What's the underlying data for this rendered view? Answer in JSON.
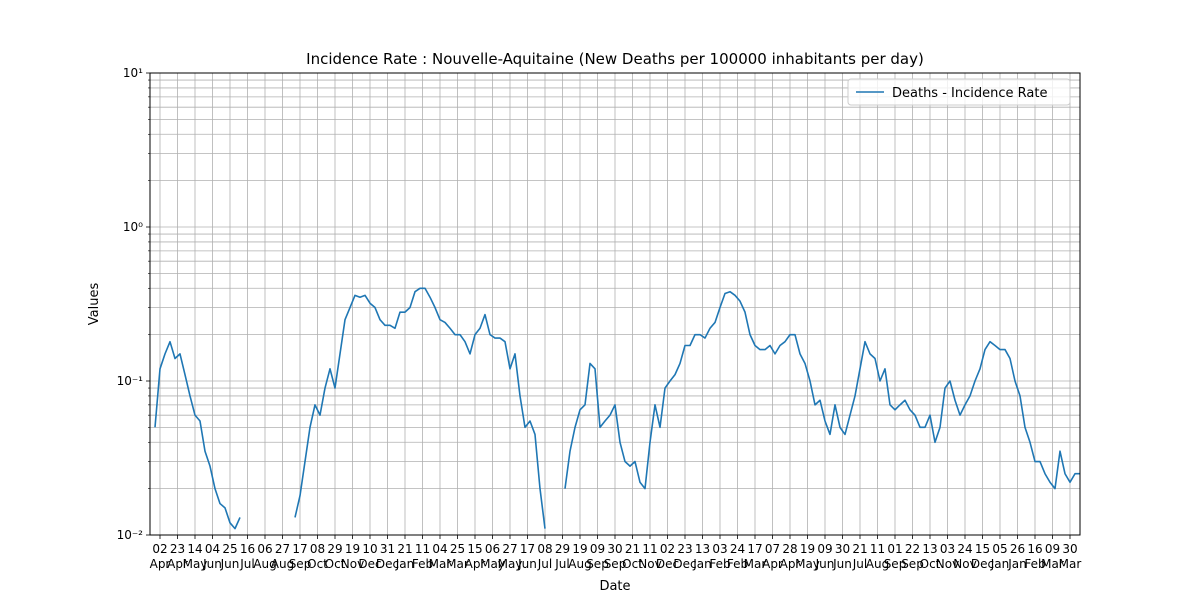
{
  "chart_data": {
    "type": "line",
    "title": "Incidence Rate : Nouvelle-Aquitaine  (New Deaths per 100000 inhabitants per day)",
    "xlabel": "Date",
    "ylabel": "Values",
    "log_y": true,
    "grid": true,
    "legend_loc": "upper right",
    "xlim": [
      -12,
      1104
    ],
    "ylim": [
      0.01,
      10
    ],
    "yticks": [
      {
        "value": 0.01,
        "label": "10⁻²"
      },
      {
        "value": 0.1,
        "label": "10⁻¹"
      },
      {
        "value": 1,
        "label": "10⁰"
      },
      {
        "value": 10,
        "label": "10¹"
      }
    ],
    "yminorticks": [
      0.02,
      0.03,
      0.04,
      0.05,
      0.06,
      0.07,
      0.08,
      0.09,
      0.2,
      0.3,
      0.4,
      0.5,
      0.6,
      0.7,
      0.8,
      0.9,
      2,
      3,
      4,
      5,
      6,
      7,
      8,
      9
    ],
    "xticks": [
      {
        "value": 0,
        "label": "02\nApr"
      },
      {
        "value": 21,
        "label": "23\nApr"
      },
      {
        "value": 42,
        "label": "14\nMay"
      },
      {
        "value": 63,
        "label": "04\nJun"
      },
      {
        "value": 84,
        "label": "25\nJun"
      },
      {
        "value": 105,
        "label": "16\nJul"
      },
      {
        "value": 126,
        "label": "06\nAug"
      },
      {
        "value": 147,
        "label": "27\nAug"
      },
      {
        "value": 168,
        "label": "17\nSep"
      },
      {
        "value": 189,
        "label": "08\nOct"
      },
      {
        "value": 210,
        "label": "29\nOct"
      },
      {
        "value": 231,
        "label": "19\nNov"
      },
      {
        "value": 252,
        "label": "10\nDec"
      },
      {
        "value": 273,
        "label": "31\nDec"
      },
      {
        "value": 294,
        "label": "21\nJan"
      },
      {
        "value": 315,
        "label": "11\nFeb"
      },
      {
        "value": 336,
        "label": "04\nMar"
      },
      {
        "value": 357,
        "label": "25\nMar"
      },
      {
        "value": 378,
        "label": "15\nApr"
      },
      {
        "value": 399,
        "label": "06\nMay"
      },
      {
        "value": 420,
        "label": "27\nMay"
      },
      {
        "value": 441,
        "label": "17\nJun"
      },
      {
        "value": 462,
        "label": "08\nJul"
      },
      {
        "value": 483,
        "label": "29\nJul"
      },
      {
        "value": 504,
        "label": "19\nAug"
      },
      {
        "value": 525,
        "label": "09\nSep"
      },
      {
        "value": 546,
        "label": "30\nSep"
      },
      {
        "value": 567,
        "label": "21\nOct"
      },
      {
        "value": 588,
        "label": "11\nNov"
      },
      {
        "value": 609,
        "label": "02\nDec"
      },
      {
        "value": 630,
        "label": "23\nDec"
      },
      {
        "value": 651,
        "label": "13\nJan"
      },
      {
        "value": 672,
        "label": "03\nFeb"
      },
      {
        "value": 693,
        "label": "24\nFeb"
      },
      {
        "value": 714,
        "label": "17\nMar"
      },
      {
        "value": 735,
        "label": "07\nApr"
      },
      {
        "value": 756,
        "label": "28\nApr"
      },
      {
        "value": 777,
        "label": "19\nMay"
      },
      {
        "value": 798,
        "label": "09\nJun"
      },
      {
        "value": 819,
        "label": "30\nJun"
      },
      {
        "value": 840,
        "label": "21\nJul"
      },
      {
        "value": 861,
        "label": "11\nAug"
      },
      {
        "value": 882,
        "label": "01\nSep"
      },
      {
        "value": 903,
        "label": "22\nSep"
      },
      {
        "value": 924,
        "label": "13\nOct"
      },
      {
        "value": 945,
        "label": "03\nNov"
      },
      {
        "value": 966,
        "label": "24\nNov"
      },
      {
        "value": 987,
        "label": "15\nDec"
      },
      {
        "value": 1008,
        "label": "05\nJan"
      },
      {
        "value": 1029,
        "label": "26\nJan"
      },
      {
        "value": 1050,
        "label": "16\nFeb"
      },
      {
        "value": 1071,
        "label": "09\nMar"
      },
      {
        "value": 1092,
        "label": "30\nMar"
      }
    ],
    "x": [
      -6,
      0,
      6,
      12,
      18,
      24,
      30,
      36,
      42,
      48,
      54,
      60,
      66,
      72,
      78,
      84,
      90,
      96,
      102,
      108,
      114,
      120,
      126,
      132,
      138,
      144,
      150,
      156,
      162,
      168,
      174,
      180,
      186,
      192,
      198,
      204,
      210,
      216,
      222,
      228,
      234,
      240,
      246,
      252,
      258,
      264,
      270,
      276,
      282,
      288,
      294,
      300,
      306,
      312,
      318,
      324,
      330,
      336,
      342,
      348,
      354,
      360,
      366,
      372,
      378,
      384,
      390,
      396,
      402,
      408,
      414,
      420,
      426,
      432,
      438,
      444,
      450,
      456,
      462,
      468,
      474,
      480,
      486,
      492,
      498,
      504,
      510,
      516,
      522,
      528,
      534,
      540,
      546,
      552,
      558,
      564,
      570,
      576,
      582,
      588,
      594,
      600,
      606,
      612,
      618,
      624,
      630,
      636,
      642,
      648,
      654,
      660,
      666,
      672,
      678,
      684,
      690,
      696,
      702,
      708,
      714,
      720,
      726,
      732,
      738,
      744,
      750,
      756,
      762,
      768,
      774,
      780,
      786,
      792,
      798,
      804,
      810,
      816,
      822,
      828,
      834,
      840,
      846,
      852,
      858,
      864,
      870,
      876,
      882,
      888,
      894,
      900,
      906,
      912,
      918,
      924,
      930,
      936,
      942,
      948,
      954,
      960,
      966,
      972,
      978,
      984,
      990,
      996,
      1002,
      1008,
      1014,
      1020,
      1026,
      1032,
      1038,
      1044,
      1050,
      1056,
      1062,
      1068,
      1074,
      1080,
      1086,
      1092,
      1098,
      1104
    ],
    "series": [
      {
        "name": "Deaths - Incidence Rate",
        "color": "#1f77b4",
        "values": [
          0.05,
          0.12,
          0.15,
          0.18,
          0.14,
          0.15,
          0.11,
          0.08,
          0.06,
          0.055,
          0.035,
          0.028,
          0.02,
          0.016,
          0.015,
          0.012,
          0.011,
          0.013,
          null,
          null,
          null,
          null,
          null,
          null,
          null,
          null,
          null,
          null,
          0.013,
          0.018,
          0.03,
          0.05,
          0.07,
          0.06,
          0.09,
          0.12,
          0.09,
          0.15,
          0.25,
          0.3,
          0.36,
          0.35,
          0.36,
          0.32,
          0.3,
          0.25,
          0.23,
          0.23,
          0.22,
          0.28,
          0.28,
          0.3,
          0.38,
          0.4,
          0.4,
          0.35,
          0.3,
          0.25,
          0.24,
          0.22,
          0.2,
          0.2,
          0.18,
          0.15,
          0.2,
          0.22,
          0.27,
          0.2,
          0.19,
          0.19,
          0.18,
          0.12,
          0.15,
          0.08,
          0.05,
          0.055,
          0.045,
          0.02,
          0.011,
          null,
          null,
          null,
          0.02,
          0.035,
          0.05,
          0.065,
          0.07,
          0.13,
          0.12,
          0.05,
          0.055,
          0.06,
          0.07,
          0.04,
          0.03,
          0.028,
          0.03,
          0.022,
          0.02,
          0.04,
          0.07,
          0.05,
          0.09,
          0.1,
          0.11,
          0.13,
          0.17,
          0.17,
          0.2,
          0.2,
          0.19,
          0.22,
          0.24,
          0.3,
          0.37,
          0.38,
          0.36,
          0.33,
          0.28,
          0.2,
          0.17,
          0.16,
          0.16,
          0.17,
          0.15,
          0.17,
          0.18,
          0.2,
          0.2,
          0.15,
          0.13,
          0.1,
          0.07,
          0.075,
          0.055,
          0.045,
          0.07,
          0.05,
          0.045,
          0.06,
          0.08,
          0.12,
          0.18,
          0.15,
          0.14,
          0.1,
          0.12,
          0.07,
          0.065,
          0.07,
          0.075,
          0.065,
          0.06,
          0.05,
          0.05,
          0.06,
          0.04,
          0.05,
          0.09,
          0.1,
          0.075,
          0.06,
          0.07,
          0.08,
          0.1,
          0.12,
          0.16,
          0.18,
          0.17,
          0.16,
          0.16,
          0.14,
          0.1,
          0.08,
          0.05,
          0.04,
          0.03,
          0.03,
          0.025,
          0.022,
          0.02,
          0.035,
          0.025,
          0.022,
          0.025,
          0.025
        ]
      }
    ]
  }
}
